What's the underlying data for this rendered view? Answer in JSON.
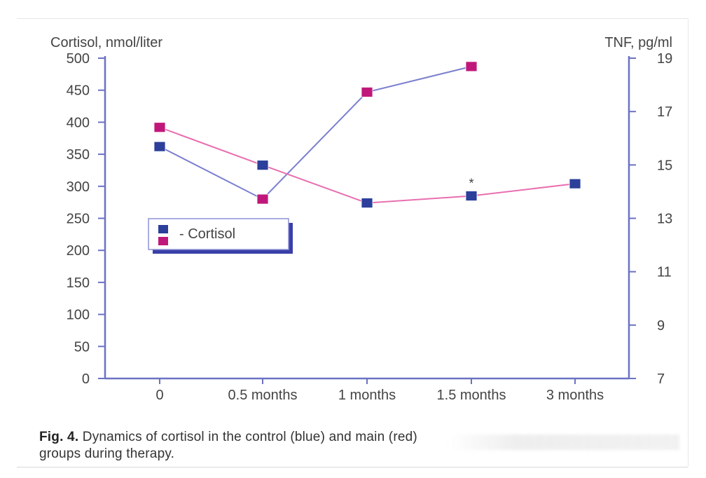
{
  "chart_data": {
    "type": "line",
    "left_axis_label": "Cortisol, nmol/liter",
    "right_axis_label": "TNF, pg/ml",
    "categories": [
      "0",
      "0.5 months",
      "1 months",
      "1.5 months",
      "3 months"
    ],
    "left_ticks": [
      0,
      50,
      100,
      150,
      200,
      250,
      300,
      350,
      400,
      450,
      500
    ],
    "right_ticks": [
      7,
      9,
      11,
      13,
      15,
      17,
      19
    ],
    "ylim_left": [
      0,
      500
    ],
    "ylim_right": [
      7,
      19
    ],
    "series": [
      {
        "values": [
          362,
          280,
          447,
          487,
          null
        ],
        "color": "#2b3f9b",
        "line_color": "#7a7fcf"
      },
      {
        "values": [
          392,
          333,
          274,
          285,
          304
        ],
        "color": "#c0187a",
        "line_color": "#e86fb0"
      }
    ],
    "marker_colors": [
      [
        "#2b3f9b",
        "#c0187a",
        "#c0187a",
        "#c0187a",
        null
      ],
      [
        "#c0187a",
        "#2b3f9b",
        "#2b3f9b",
        "#2b3f9b",
        "#2b3f9b"
      ]
    ],
    "annotation": {
      "text": "*",
      "category_index": 3
    },
    "legend": {
      "entries": [
        "- Cortisol",
        ""
      ],
      "position": "center-left"
    },
    "caption_bold": "Fig. 4.",
    "caption_text": "Dynamics of cortisol in the control (blue) and main (red)",
    "caption_line2": "groups during therapy."
  }
}
